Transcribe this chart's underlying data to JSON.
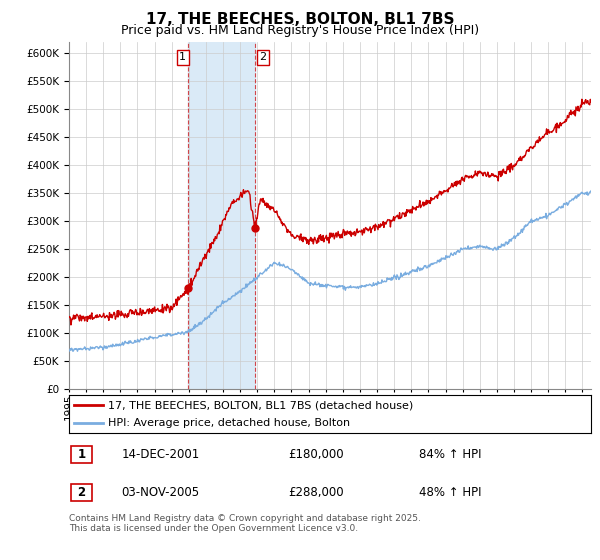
{
  "title": "17, THE BEECHES, BOLTON, BL1 7BS",
  "subtitle": "Price paid vs. HM Land Registry's House Price Index (HPI)",
  "ylim": [
    0,
    620000
  ],
  "yticks": [
    0,
    50000,
    100000,
    150000,
    200000,
    250000,
    300000,
    350000,
    400000,
    450000,
    500000,
    550000,
    600000
  ],
  "xlim_start": 1995.0,
  "xlim_end": 2025.5,
  "sale1_date": 2001.95,
  "sale1_price": 180000,
  "sale1_label": "1",
  "sale2_date": 2005.84,
  "sale2_price": 288000,
  "sale2_label": "2",
  "red_line_color": "#cc0000",
  "blue_line_color": "#7aade0",
  "shade_color": "#daeaf7",
  "vline_color": "#cc0000",
  "legend_line1": "17, THE BEECHES, BOLTON, BL1 7BS (detached house)",
  "legend_line2": "HPI: Average price, detached house, Bolton",
  "table_row1_num": "1",
  "table_row1_date": "14-DEC-2001",
  "table_row1_price": "£180,000",
  "table_row1_hpi": "84% ↑ HPI",
  "table_row2_num": "2",
  "table_row2_date": "03-NOV-2005",
  "table_row2_price": "£288,000",
  "table_row2_hpi": "48% ↑ HPI",
  "footnote": "Contains HM Land Registry data © Crown copyright and database right 2025.\nThis data is licensed under the Open Government Licence v3.0.",
  "title_fontsize": 11,
  "subtitle_fontsize": 9,
  "axis_fontsize": 7.5,
  "legend_fontsize": 8,
  "table_fontsize": 8.5,
  "footnote_fontsize": 6.5,
  "hpi_knots_x": [
    1995,
    1996,
    1997,
    1998,
    1999,
    2000,
    2001,
    2002,
    2003,
    2004,
    2005,
    2006,
    2007,
    2008,
    2009,
    2010,
    2011,
    2012,
    2013,
    2014,
    2015,
    2016,
    2017,
    2018,
    2019,
    2020,
    2021,
    2022,
    2023,
    2024,
    2025
  ],
  "hpi_knots_y": [
    70000,
    72000,
    75000,
    80000,
    86000,
    93000,
    98000,
    103000,
    125000,
    155000,
    175000,
    200000,
    225000,
    215000,
    190000,
    185000,
    183000,
    182000,
    188000,
    198000,
    210000,
    220000,
    235000,
    250000,
    255000,
    250000,
    270000,
    300000,
    310000,
    330000,
    350000
  ],
  "red_knots_x": [
    1995,
    1996,
    1997,
    1998,
    1999,
    2000,
    2001,
    2001.95,
    2002.5,
    2003,
    2003.5,
    2004,
    2004.5,
    2005,
    2005.5,
    2005.84,
    2006.0,
    2006.2,
    2006.5,
    2007,
    2007.5,
    2008,
    2008.5,
    2009,
    2010,
    2011,
    2012,
    2013,
    2014,
    2015,
    2016,
    2017,
    2018,
    2019,
    2020,
    2021,
    2022,
    2023,
    2024,
    2025
  ],
  "red_knots_y": [
    128000,
    127000,
    130000,
    133000,
    137000,
    141000,
    145000,
    180000,
    210000,
    240000,
    265000,
    300000,
    330000,
    345000,
    355000,
    288000,
    310000,
    340000,
    330000,
    320000,
    295000,
    275000,
    270000,
    265000,
    270000,
    278000,
    282000,
    290000,
    305000,
    320000,
    335000,
    355000,
    375000,
    385000,
    380000,
    400000,
    430000,
    460000,
    480000,
    510000
  ]
}
